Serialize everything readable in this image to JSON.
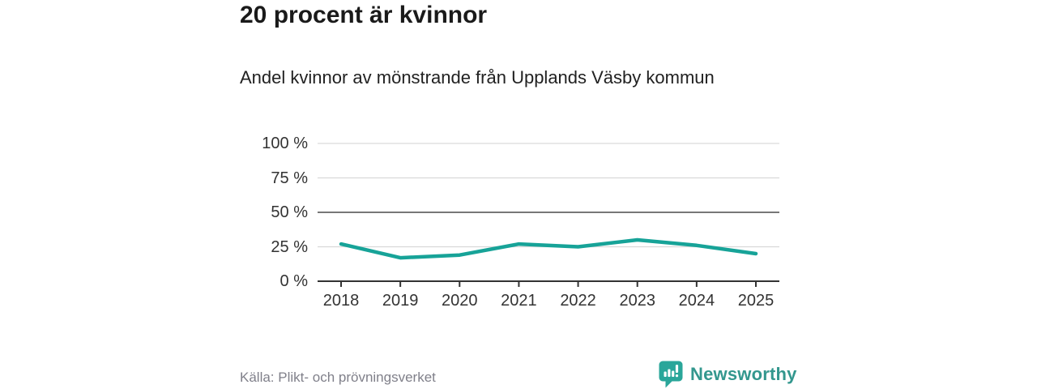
{
  "header": {
    "title": "20 procent är kvinnor",
    "subtitle": "Andel kvinnor av mönstrande från Upplands Väsby kommun"
  },
  "footer": {
    "source": "Källa: Plikt- och prövningsverket",
    "brand": "Newsworthy"
  },
  "colors": {
    "line": "#17a398",
    "brand_icon": "#2aa69a",
    "brand_text": "#33978e",
    "title": "#1a1a1a",
    "text": "#212121",
    "axis_text": "#333333",
    "muted": "#80808a",
    "grid_light": "#d9d9d9",
    "grid_dark": "#4a4a4a",
    "axis": "#333333"
  },
  "chart_data": {
    "type": "line",
    "title": "20 procent är kvinnor",
    "subtitle": "Andel kvinnor av mönstrande från Upplands Väsby kommun",
    "x": [
      2018,
      2019,
      2020,
      2021,
      2022,
      2023,
      2024,
      2025
    ],
    "series": [
      {
        "name": "Andel kvinnor av mönstrande",
        "values": [
          27,
          17,
          19,
          27,
          25,
          30,
          26,
          20
        ]
      }
    ],
    "unit": "%",
    "xlabel": "",
    "ylabel": "",
    "ylim": [
      0,
      100
    ],
    "y_tick_values": [
      0,
      25,
      50,
      75,
      100
    ],
    "y_ticks": [
      "0 %",
      "25 %",
      "50 %",
      "75 %",
      "100 %"
    ],
    "grid": true,
    "emphasized_gridline": 50,
    "legend_position": "none"
  }
}
